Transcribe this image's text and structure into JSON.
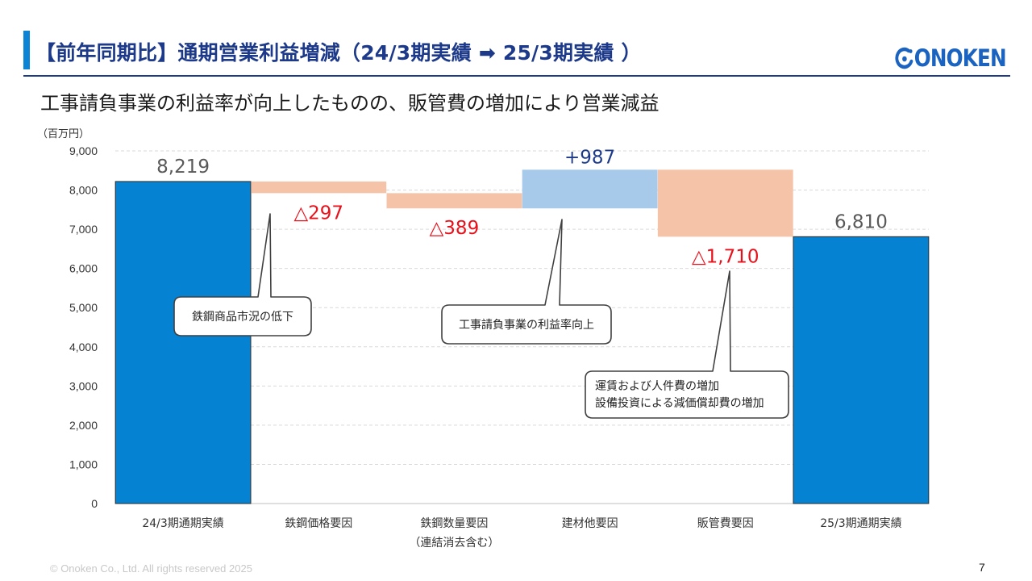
{
  "header": {
    "title": "【前年同期比】通期営業利益増減（24/3期実績 ➡ 25/3期実績 ）",
    "logo_text": "ONOKEN",
    "subtitle": "工事請負事業の利益率が向上したものの、販管費の増加により営業減益"
  },
  "footer": {
    "copyright": "© Onoken Co., Ltd. All rights reserved 2025",
    "page_number": "7"
  },
  "colors": {
    "accent": "#0b84d6",
    "title": "#1d3a8a",
    "total_bar": "#0583d2",
    "decrease_bar": "#f4c3a8",
    "increase_bar": "#a7c9ea",
    "decrease_label": "#e8101a",
    "increase_label": "#1d3a8a",
    "total_label": "#595959"
  },
  "chart_data": {
    "type": "bar",
    "subtype": "waterfall",
    "unit_label": "（百万円）",
    "ylim": [
      0,
      9000
    ],
    "y_ticks": [
      "0",
      "1,000",
      "2,000",
      "3,000",
      "4,000",
      "5,000",
      "6,000",
      "7,000",
      "8,000",
      "9,000"
    ],
    "grid": true,
    "categories": [
      "24/3期通期実績",
      "鉄鋼価格要因",
      "鉄鋼数量要因",
      "建材他要因",
      "販管費要因",
      "25/3期通期実績"
    ],
    "category_sublabels": [
      "",
      "",
      "（連結消去含む）",
      "",
      "",
      ""
    ],
    "steps": [
      {
        "kind": "total",
        "start": 0,
        "end": 8219,
        "label": "8,219"
      },
      {
        "kind": "decrease",
        "start": 8219,
        "end": 7922,
        "label": "△297"
      },
      {
        "kind": "decrease",
        "start": 7922,
        "end": 7533,
        "label": "△389"
      },
      {
        "kind": "increase",
        "start": 7533,
        "end": 8520,
        "label": "+987"
      },
      {
        "kind": "decrease",
        "start": 8520,
        "end": 6810,
        "label": "△1,710"
      },
      {
        "kind": "total",
        "start": 0,
        "end": 6810,
        "label": "6,810"
      }
    ],
    "annotations": [
      {
        "category_index": 1,
        "lines": [
          "鉄鋼商品市況の低下"
        ]
      },
      {
        "category_index": 3,
        "lines": [
          "工事請負事業の利益率向上"
        ]
      },
      {
        "category_index": 4,
        "lines": [
          "運賃および人件費の増加",
          "設備投資による減価償却費の増加"
        ]
      }
    ]
  }
}
